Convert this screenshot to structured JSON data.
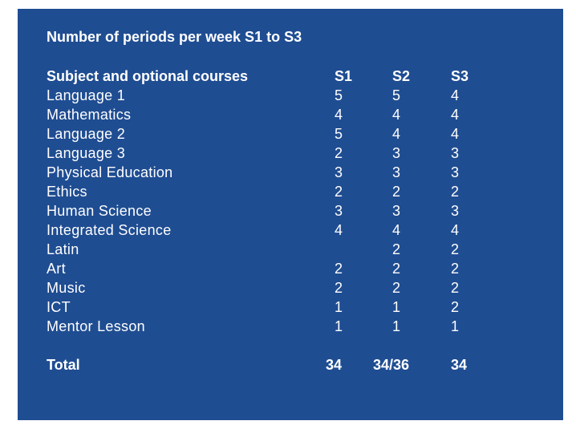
{
  "title": "Number of periods per week S1 to S3",
  "header": {
    "subject": "Subject and optional courses",
    "s1": "S1",
    "s2": "S2",
    "s3": "S3"
  },
  "rows": [
    {
      "subject": "Language 1",
      "s1": "5",
      "s2": "5",
      "s3": "4"
    },
    {
      "subject": "Mathematics",
      "s1": "4",
      "s2": "4",
      "s3": "4"
    },
    {
      "subject": "Language 2",
      "s1": "5",
      "s2": "4",
      "s3": "4"
    },
    {
      "subject": "Language 3",
      "s1": "2",
      "s2": "3",
      "s3": "3"
    },
    {
      "subject": "Physical Education",
      "s1": "3",
      "s2": "3",
      "s3": "3"
    },
    {
      "subject": "Ethics",
      "s1": "2",
      "s2": "2",
      "s3": "2"
    },
    {
      "subject": "Human Science",
      "s1": "3",
      "s2": "3",
      "s3": "3"
    },
    {
      "subject": "Integrated Science",
      "s1": "4",
      "s2": "4",
      "s3": "4"
    },
    {
      "subject": "Latin",
      "s1": "",
      "s2": "2",
      "s3": "2"
    },
    {
      "subject": "Art",
      "s1": "2",
      "s2": "2",
      "s3": "2"
    },
    {
      "subject": "Music",
      "s1": "2",
      "s2": "2",
      "s3": "2"
    },
    {
      "subject": "ICT",
      "s1": "1",
      "s2": "1",
      "s3": "2"
    },
    {
      "subject": "Mentor Lesson",
      "s1": "1",
      "s2": "1",
      "s3": "1"
    }
  ],
  "total": {
    "label": "Total",
    "s1": "34",
    "s2": "34/36",
    "s3": "34"
  },
  "colors": {
    "background": "#1f4d92",
    "text": "#ffffff"
  }
}
